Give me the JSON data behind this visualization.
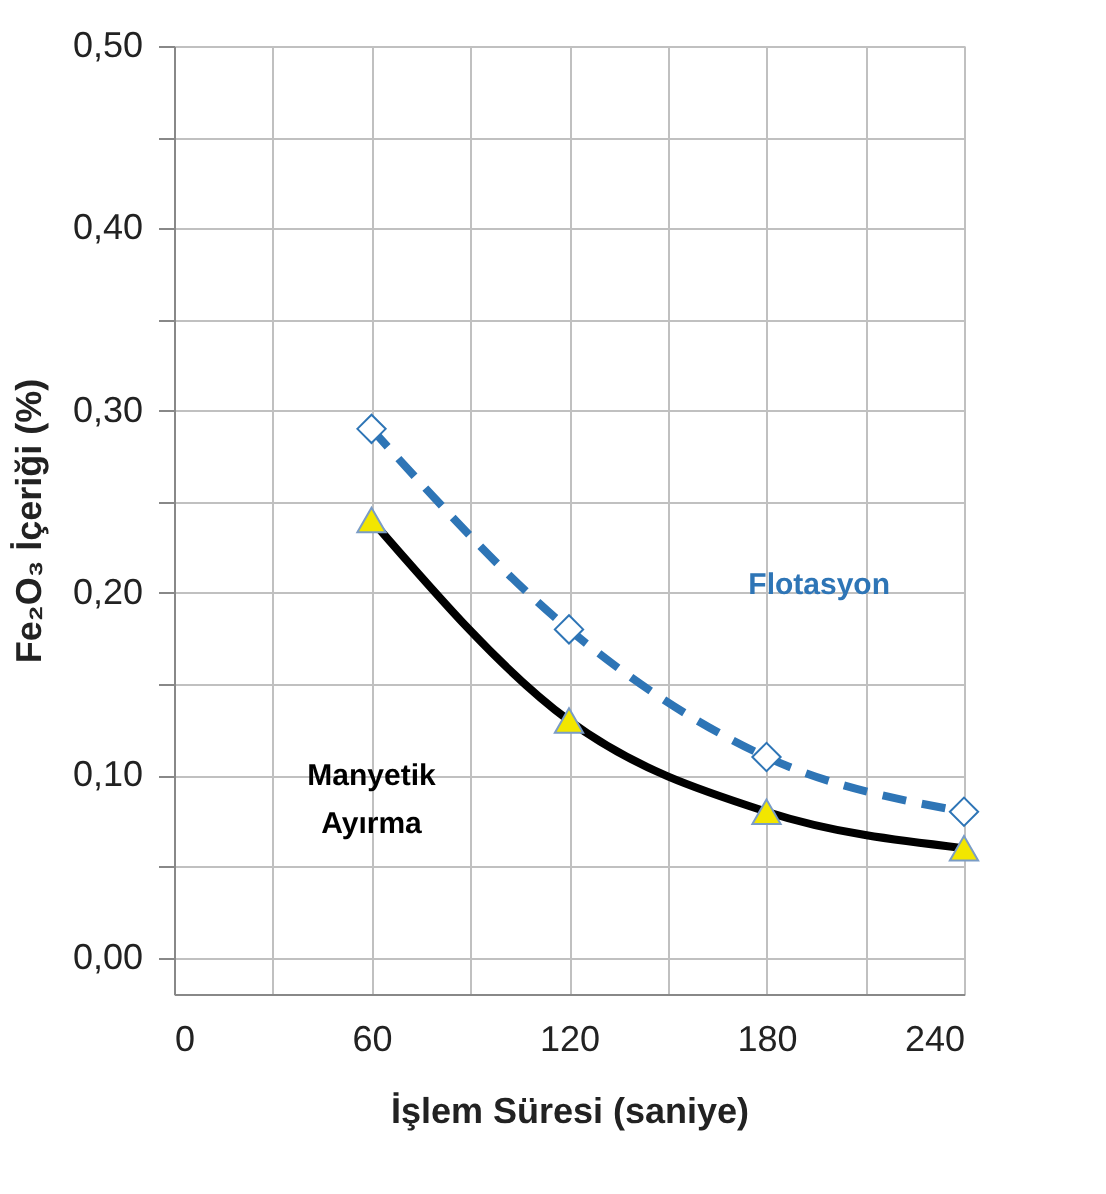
{
  "chart_data": {
    "type": "line",
    "xlabel": "İşlem Süresi (saniye)",
    "ylabel": "Fe₂O₃ İçeriği (%)",
    "x": [
      60,
      120,
      180,
      240
    ],
    "series": [
      {
        "name": "Flotasyon",
        "color": "#2e75b6",
        "values": [
          0.29,
          0.18,
          0.11,
          0.08
        ],
        "marker": "diamond",
        "line_style": "dashed"
      },
      {
        "name": "Manyetik Ayırma",
        "color": "#000000",
        "values": [
          0.24,
          0.13,
          0.08,
          0.06
        ],
        "marker": "triangle",
        "line_style": "solid"
      }
    ],
    "xlim": [
      0,
      240
    ],
    "ylim": [
      -0.02,
      0.5
    ],
    "xticks": [
      0,
      {
        "value": 30,
        "label": null
      },
      60,
      {
        "value": 90,
        "label": null
      },
      120,
      {
        "value": 150,
        "label": null
      },
      180,
      {
        "value": 210,
        "label": null
      },
      240
    ],
    "yticks": [
      {
        "value": 0,
        "label": "0,00"
      },
      {
        "value": 0.05,
        "label": null
      },
      {
        "value": 0.1,
        "label": "0,10"
      },
      {
        "value": 0.15,
        "label": null
      },
      {
        "value": 0.2,
        "label": "0,20"
      },
      {
        "value": 0.25,
        "label": null
      },
      {
        "value": 0.3,
        "label": "0,30"
      },
      {
        "value": 0.35,
        "label": null
      },
      {
        "value": 0.4,
        "label": "0,40"
      },
      {
        "value": 0.45,
        "label": null
      },
      {
        "value": 0.5,
        "label": "0,50"
      }
    ],
    "grid": true
  }
}
